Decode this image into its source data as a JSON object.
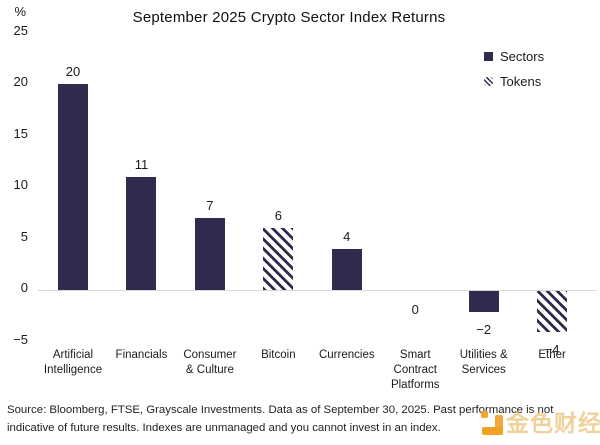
{
  "header": {
    "percent_label": "%",
    "title": "September 2025 Crypto Sector Index Returns"
  },
  "legend": [
    {
      "label": "Sectors",
      "style": "solid"
    },
    {
      "label": "Tokens",
      "style": "hatched"
    }
  ],
  "chart_data": {
    "type": "bar",
    "title": "September 2025 Crypto Sector Index Returns",
    "xlabel": "",
    "ylabel": "%",
    "ylim": [
      -5,
      25
    ],
    "yticks": [
      25,
      20,
      15,
      10,
      5,
      0,
      -5
    ],
    "grid": false,
    "legend_position": "top-right",
    "bar_color": "#32294f",
    "categories": [
      "Artificial Intelligence",
      "Financials",
      "Consumer & Culture",
      "Bitcoin",
      "Currencies",
      "Smart Contract Platforms",
      "Utilities & Services",
      "Ether"
    ],
    "category_lines": [
      [
        "Artificial",
        "Intelligence"
      ],
      [
        "Financials"
      ],
      [
        "Consumer",
        "& Culture"
      ],
      [
        "Bitcoin"
      ],
      [
        "Currencies"
      ],
      [
        "Smart",
        "Contract",
        "Platforms"
      ],
      [
        "Utilities &",
        "Services"
      ],
      [
        "Ether"
      ]
    ],
    "values": [
      20,
      11,
      7,
      6,
      4,
      0,
      -2,
      -4
    ],
    "styles": [
      "solid",
      "solid",
      "solid",
      "hatched",
      "solid",
      "solid",
      "solid",
      "hatched"
    ],
    "series_legend": {
      "solid": "Sectors",
      "hatched": "Tokens"
    }
  },
  "footer": {
    "source_line1": "Source: Bloomberg, FTSE, Grayscale Investments. Data as of September 30, 2025. Past performance is not",
    "source_line2": "indicative of future results. Indexes are unmanaged and you cannot invest in an index."
  },
  "watermark": {
    "text": "金色财经"
  }
}
